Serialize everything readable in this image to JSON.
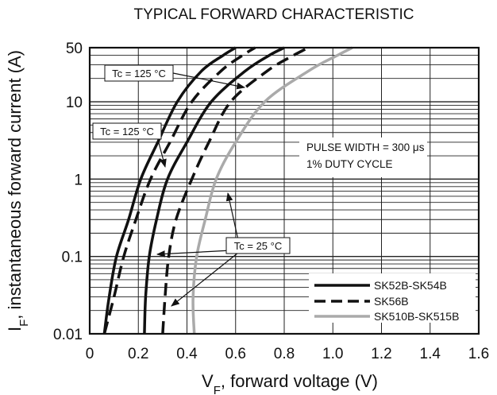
{
  "chart_data": {
    "type": "line",
    "title": "TYPICAL FORWARD CHARACTERISTIC",
    "xlabel_main": "V",
    "xlabel_sub": "F",
    "xlabel_rest": ", forward voltage (V)",
    "ylabel_main": "I",
    "ylabel_sub": "F",
    "ylabel_rest": ", instantaneous forward current (A)",
    "xlim": [
      0,
      1.6
    ],
    "ylim": [
      0.01,
      50
    ],
    "yscale": "log",
    "grid": true,
    "x_ticks": [
      {
        "value": 0,
        "label": "0"
      },
      {
        "value": 0.2,
        "label": "0.2"
      },
      {
        "value": 0.4,
        "label": "0.4"
      },
      {
        "value": 0.6,
        "label": "0.6"
      },
      {
        "value": 0.8,
        "label": "0.8"
      },
      {
        "value": 1.0,
        "label": "1.0"
      },
      {
        "value": 1.2,
        "label": "1.2"
      },
      {
        "value": 1.4,
        "label": "1.4"
      },
      {
        "value": 1.6,
        "label": "1.6"
      }
    ],
    "y_ticks": [
      {
        "value": 0.01,
        "label": "0.01"
      },
      {
        "value": 0.1,
        "label": "0.1"
      },
      {
        "value": 1,
        "label": "1"
      },
      {
        "value": 10,
        "label": "10"
      },
      {
        "value": 50,
        "label": "50"
      }
    ],
    "series": [
      {
        "name": "SK52B-SK54B",
        "condition": "Tc = 125 °C",
        "style": "solid",
        "color": "#111111",
        "points": [
          [
            0.06,
            0.01
          ],
          [
            0.08,
            0.03
          ],
          [
            0.11,
            0.1
          ],
          [
            0.16,
            0.3
          ],
          [
            0.21,
            1
          ],
          [
            0.28,
            3
          ],
          [
            0.36,
            10
          ],
          [
            0.46,
            25
          ],
          [
            0.55,
            40
          ],
          [
            0.6,
            50
          ]
        ]
      },
      {
        "name": "SK56B",
        "condition": "Tc = 125 °C",
        "style": "dashed",
        "color": "#111111",
        "points": [
          [
            0.06,
            0.01
          ],
          [
            0.1,
            0.03
          ],
          [
            0.14,
            0.1
          ],
          [
            0.19,
            0.3
          ],
          [
            0.25,
            1
          ],
          [
            0.33,
            3
          ],
          [
            0.42,
            10
          ],
          [
            0.54,
            25
          ],
          [
            0.63,
            40
          ],
          [
            0.68,
            50
          ]
        ]
      },
      {
        "name": "SK52B-SK54B",
        "condition": "Tc = 25 °C",
        "style": "solid",
        "color": "#111111",
        "points": [
          [
            0.225,
            0.01
          ],
          [
            0.23,
            0.03
          ],
          [
            0.245,
            0.1
          ],
          [
            0.275,
            0.3
          ],
          [
            0.32,
            1
          ],
          [
            0.4,
            3
          ],
          [
            0.5,
            10
          ],
          [
            0.64,
            25
          ],
          [
            0.74,
            40
          ],
          [
            0.8,
            50
          ]
        ]
      },
      {
        "name": "SK56B",
        "condition": "Tc = 25 °C",
        "style": "dashed",
        "color": "#111111",
        "points": [
          [
            0.3,
            0.01
          ],
          [
            0.31,
            0.03
          ],
          [
            0.325,
            0.1
          ],
          [
            0.355,
            0.3
          ],
          [
            0.42,
            1
          ],
          [
            0.49,
            3
          ],
          [
            0.58,
            10
          ],
          [
            0.73,
            25
          ],
          [
            0.84,
            40
          ],
          [
            0.9,
            50
          ]
        ]
      },
      {
        "name": "SK510B-SK515B",
        "condition": "Tc = 25 °C",
        "style": "solid",
        "color": "#aaaaaa",
        "points": [
          [
            0.43,
            0.01
          ],
          [
            0.425,
            0.03
          ],
          [
            0.44,
            0.1
          ],
          [
            0.475,
            0.3
          ],
          [
            0.52,
            1
          ],
          [
            0.6,
            3
          ],
          [
            0.72,
            10
          ],
          [
            0.9,
            25
          ],
          [
            1.02,
            40
          ],
          [
            1.08,
            50
          ]
        ]
      }
    ],
    "annotations": [
      {
        "text": "Tc = 125 °C",
        "box": true
      },
      {
        "text": "Tc = 125 °C",
        "box": true
      },
      {
        "text": "Tc = 25 °C",
        "box": true
      }
    ],
    "note_lines": [
      "PULSE WIDTH = 300 μs",
      "1% DUTY CYCLE"
    ],
    "legend": {
      "placement": "bottom-right",
      "entries": [
        {
          "label": "SK52B-SK54B",
          "style": "solid",
          "color": "#111111"
        },
        {
          "label": "SK56B",
          "style": "dashed",
          "color": "#111111"
        },
        {
          "label": "SK510B-SK515B",
          "style": "solid",
          "color": "#aaaaaa"
        }
      ]
    }
  }
}
